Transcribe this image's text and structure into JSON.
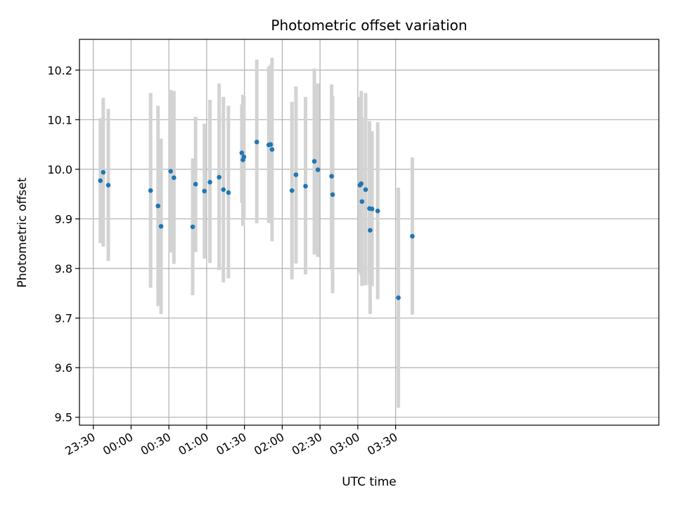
{
  "chart_data": {
    "type": "scatter",
    "title": "Photometric offset variation",
    "xlabel": "UTC time",
    "ylabel": "Photometric offset",
    "grid": true,
    "x_axis": {
      "unit": "minutes after 23:30 UTC",
      "range": [
        -11,
        449
      ],
      "ticks": [
        {
          "value": 0,
          "label": "23:30"
        },
        {
          "value": 30,
          "label": "00:00"
        },
        {
          "value": 60,
          "label": "00:30"
        },
        {
          "value": 90,
          "label": "01:00"
        },
        {
          "value": 120,
          "label": "01:30"
        },
        {
          "value": 150,
          "label": "02:00"
        },
        {
          "value": 180,
          "label": "02:30"
        },
        {
          "value": 210,
          "label": "03:00"
        },
        {
          "value": 240,
          "label": "03:30"
        }
      ]
    },
    "y_axis": {
      "range": [
        9.484,
        10.262
      ],
      "ticks": [
        {
          "value": 9.5,
          "label": "9.5"
        },
        {
          "value": 9.6,
          "label": "9.6"
        },
        {
          "value": 9.7,
          "label": "9.7"
        },
        {
          "value": 9.8,
          "label": "9.8"
        },
        {
          "value": 9.9,
          "label": "9.9"
        },
        {
          "value": 10.0,
          "label": "10.0"
        },
        {
          "value": 10.1,
          "label": "10.1"
        },
        {
          "value": 10.2,
          "label": "10.2"
        }
      ]
    },
    "colors": {
      "marker": "#1f77b4",
      "errorbar": "#d3d3d3"
    },
    "points": [
      {
        "x": 5.6,
        "y": 9.977,
        "ylow": 9.851,
        "yhigh": 10.103
      },
      {
        "x": 7.9,
        "y": 9.994,
        "ylow": 9.844,
        "yhigh": 10.144
      },
      {
        "x": 11.9,
        "y": 9.968,
        "ylow": 9.815,
        "yhigh": 10.122
      },
      {
        "x": 45.5,
        "y": 9.957,
        "ylow": 9.761,
        "yhigh": 10.154
      },
      {
        "x": 51.4,
        "y": 9.926,
        "ylow": 9.724,
        "yhigh": 10.128
      },
      {
        "x": 53.8,
        "y": 9.885,
        "ylow": 9.708,
        "yhigh": 10.062
      },
      {
        "x": 61.4,
        "y": 9.996,
        "ylow": 9.832,
        "yhigh": 10.16
      },
      {
        "x": 64.0,
        "y": 9.983,
        "ylow": 9.809,
        "yhigh": 10.158
      },
      {
        "x": 78.9,
        "y": 9.884,
        "ylow": 9.746,
        "yhigh": 10.022
      },
      {
        "x": 81.2,
        "y": 9.97,
        "ylow": 9.833,
        "yhigh": 10.106
      },
      {
        "x": 88.2,
        "y": 9.956,
        "ylow": 9.82,
        "yhigh": 10.092
      },
      {
        "x": 92.6,
        "y": 9.974,
        "ylow": 9.811,
        "yhigh": 10.14
      },
      {
        "x": 99.9,
        "y": 9.984,
        "ylow": 9.797,
        "yhigh": 10.173
      },
      {
        "x": 103.3,
        "y": 9.959,
        "ylow": 9.772,
        "yhigh": 10.146
      },
      {
        "x": 107.3,
        "y": 9.953,
        "ylow": 9.78,
        "yhigh": 10.128
      },
      {
        "x": 117.9,
        "y": 10.033,
        "ylow": 9.932,
        "yhigh": 10.131
      },
      {
        "x": 118.8,
        "y": 10.019,
        "ylow": 9.886,
        "yhigh": 10.15
      },
      {
        "x": 119.6,
        "y": 10.025,
        "ylow": 9.9,
        "yhigh": 10.148
      },
      {
        "x": 129.8,
        "y": 10.055,
        "ylow": 9.891,
        "yhigh": 10.221
      },
      {
        "x": 139.3,
        "y": 10.049,
        "ylow": 9.892,
        "yhigh": 10.207
      },
      {
        "x": 140.8,
        "y": 10.05,
        "ylow": 9.891,
        "yhigh": 10.211
      },
      {
        "x": 141.9,
        "y": 10.04,
        "ylow": 9.855,
        "yhigh": 10.225
      },
      {
        "x": 157.7,
        "y": 9.957,
        "ylow": 9.778,
        "yhigh": 10.136
      },
      {
        "x": 160.9,
        "y": 9.989,
        "ylow": 9.81,
        "yhigh": 10.167
      },
      {
        "x": 168.5,
        "y": 9.966,
        "ylow": 9.788,
        "yhigh": 10.146
      },
      {
        "x": 175.5,
        "y": 10.016,
        "ylow": 9.828,
        "yhigh": 10.203
      },
      {
        "x": 178.3,
        "y": 9.999,
        "ylow": 9.823,
        "yhigh": 10.173
      },
      {
        "x": 189.2,
        "y": 9.986,
        "ylow": 9.801,
        "yhigh": 10.171
      },
      {
        "x": 190.0,
        "y": 9.949,
        "ylow": 9.75,
        "yhigh": 10.148
      },
      {
        "x": 211.7,
        "y": 9.968,
        "ylow": 9.791,
        "yhigh": 10.145
      },
      {
        "x": 212.7,
        "y": 9.971,
        "ylow": 9.785,
        "yhigh": 10.158
      },
      {
        "x": 213.3,
        "y": 9.935,
        "ylow": 9.765,
        "yhigh": 10.105
      },
      {
        "x": 216.2,
        "y": 9.959,
        "ylow": 9.766,
        "yhigh": 10.154
      },
      {
        "x": 219.3,
        "y": 9.921,
        "ylow": 9.768,
        "yhigh": 10.097
      },
      {
        "x": 219.8,
        "y": 9.877,
        "ylow": 9.708,
        "yhigh": 10.047
      },
      {
        "x": 221.3,
        "y": 9.92,
        "ylow": 9.764,
        "yhigh": 10.077
      },
      {
        "x": 225.8,
        "y": 9.916,
        "ylow": 9.738,
        "yhigh": 10.095
      },
      {
        "x": 242.2,
        "y": 9.741,
        "ylow": 9.519,
        "yhigh": 9.963
      },
      {
        "x": 253.3,
        "y": 9.865,
        "ylow": 9.707,
        "yhigh": 10.024
      }
    ]
  }
}
